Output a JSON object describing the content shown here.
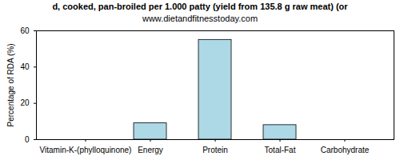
{
  "chart_data": {
    "type": "bar",
    "title": "d, cooked, pan-broiled per 1.000 patty (yield from 135.8 g raw meat) (or",
    "subtitle": "www.dietandfitnesstoday.com",
    "y_label": "Percentage of RDA (%)",
    "categories": [
      "Vitamin-K-(phylloquinone)",
      "Energy",
      "Protein",
      "Total-Fat",
      "Carbohydrate"
    ],
    "values": [
      0,
      9,
      55,
      8,
      0
    ],
    "color": "#add8e6",
    "ylim": [
      0,
      60
    ],
    "yticks": [
      0,
      20,
      40,
      60
    ],
    "grid": false
  }
}
